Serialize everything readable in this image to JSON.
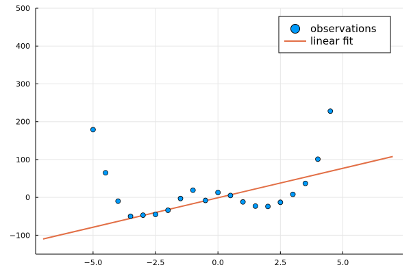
{
  "chart_data": {
    "type": "scatter",
    "title": "",
    "xlabel": "",
    "ylabel": "",
    "xlim": [
      -7.3,
      7.4
    ],
    "ylim": [
      -150,
      500
    ],
    "xticks": [
      -5,
      -2.5,
      0,
      2.5,
      5
    ],
    "xtick_labels": [
      "−5.0",
      "−2.5",
      "0.0",
      "2.5",
      "5.0"
    ],
    "yticks": [
      -100,
      0,
      100,
      200,
      300,
      400,
      500
    ],
    "ytick_labels": [
      "−100",
      "0",
      "100",
      "200",
      "300",
      "400",
      "500"
    ],
    "grid": true,
    "legend_position": "top-right",
    "series": [
      {
        "name": "observations",
        "kind": "scatter",
        "color": "#009AFA",
        "x": [
          -5.0,
          -4.5,
          -4.0,
          -3.5,
          -3.0,
          -2.5,
          -2.0,
          -1.5,
          -1.0,
          -0.5,
          0.0,
          0.5,
          1.0,
          1.5,
          2.0,
          2.5,
          3.0,
          3.5,
          4.0,
          4.5
        ],
        "y": [
          179,
          65,
          -10,
          -50,
          -47,
          -45,
          -34,
          -3,
          19,
          -8,
          13,
          5,
          -12,
          -23,
          -24,
          -13,
          8,
          37,
          101,
          228
        ]
      },
      {
        "name": "linear fit",
        "kind": "line",
        "color": "#E26F46",
        "x": [
          -7.0,
          7.0
        ],
        "y": [
          -110,
          108
        ]
      }
    ]
  }
}
